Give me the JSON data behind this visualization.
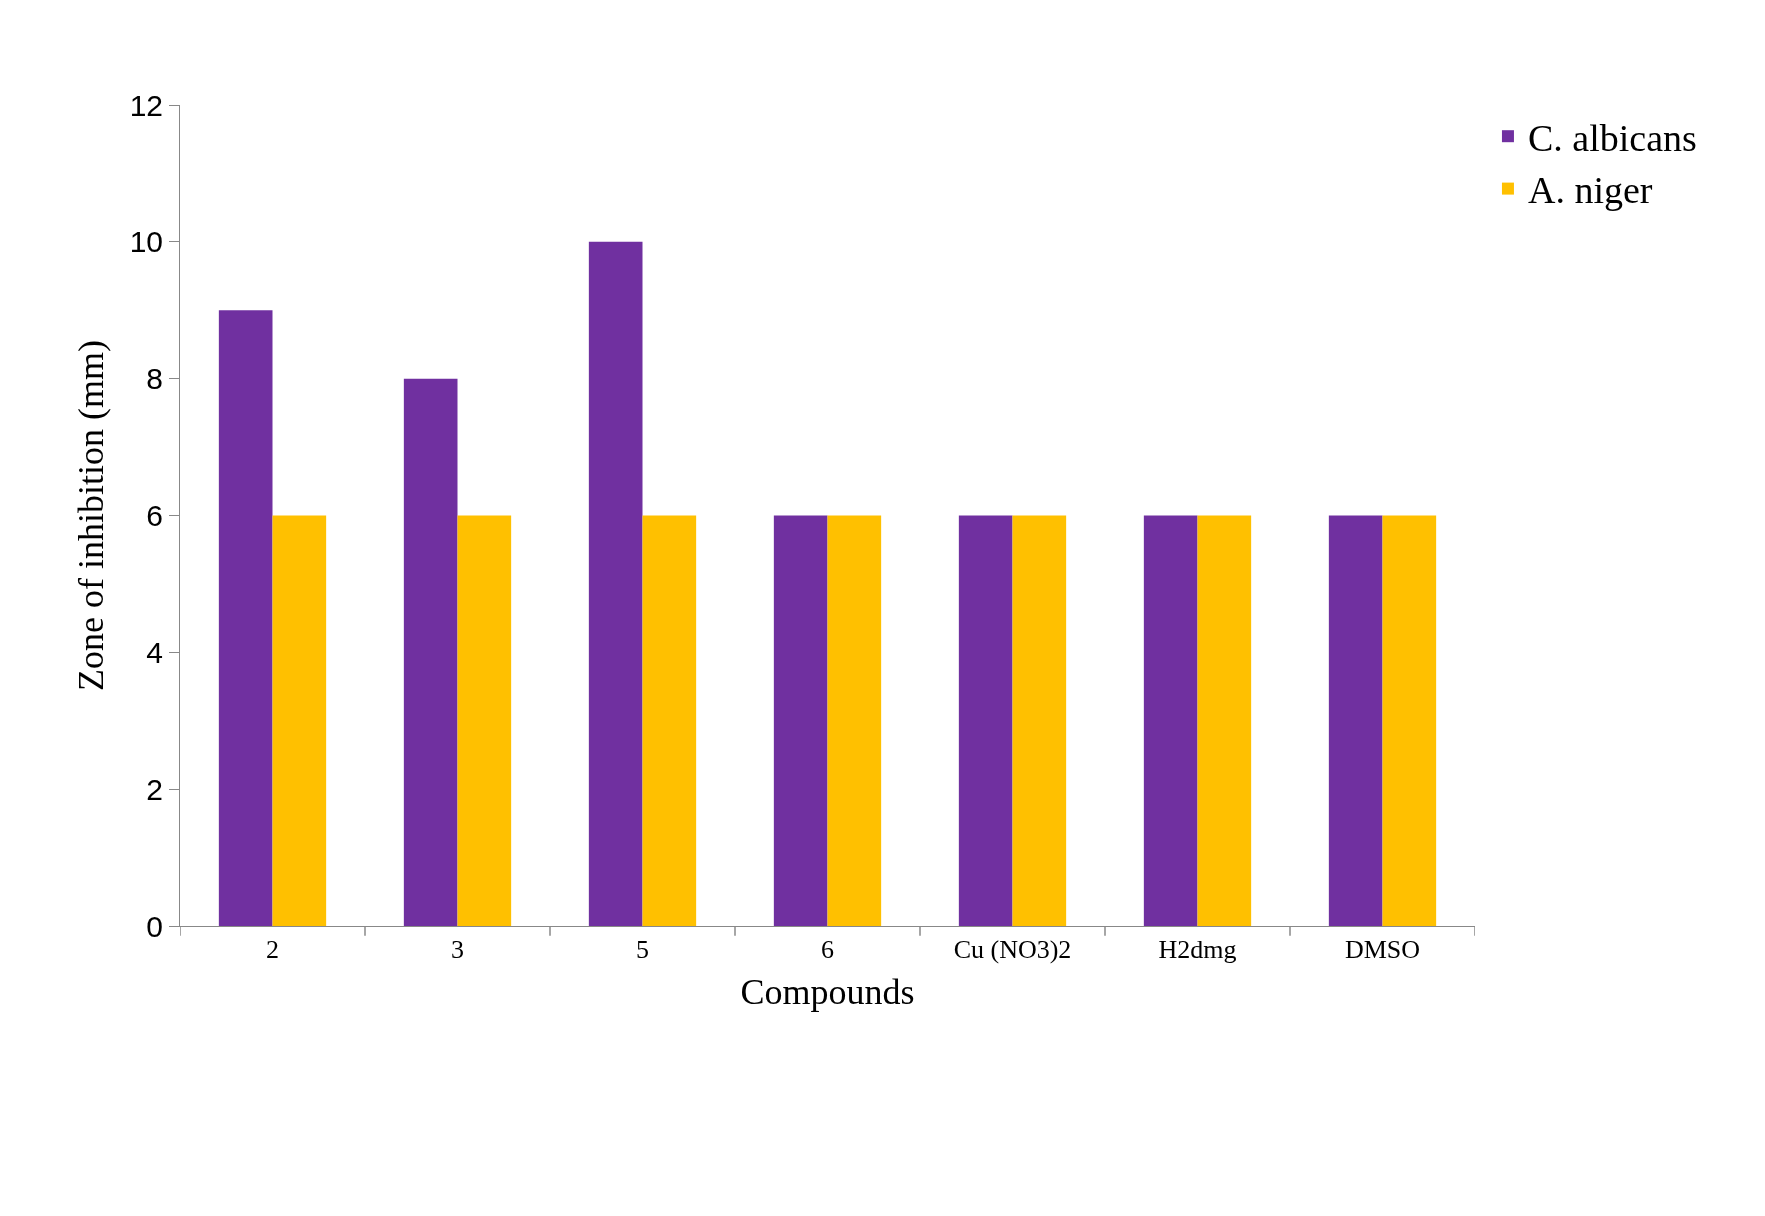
{
  "chart_data": {
    "type": "bar",
    "xlabel": "Compounds",
    "ylabel": "Zone of inhibition (mm)",
    "categories": [
      "2",
      "3",
      "5",
      "6",
      "Cu (NO3)2",
      "H2dmg",
      "DMSO"
    ],
    "series": [
      {
        "name": "C. albicans",
        "color": "#7030a0",
        "values": [
          9,
          8,
          10,
          6,
          6,
          6,
          6
        ]
      },
      {
        "name": "A. niger",
        "color": "#ffc000",
        "values": [
          6,
          6,
          6,
          6,
          6,
          6,
          6
        ]
      }
    ],
    "ylim": [
      0,
      12
    ],
    "yticks": [
      0,
      2,
      4,
      6,
      8,
      10,
      12
    ],
    "legend": "top right"
  }
}
